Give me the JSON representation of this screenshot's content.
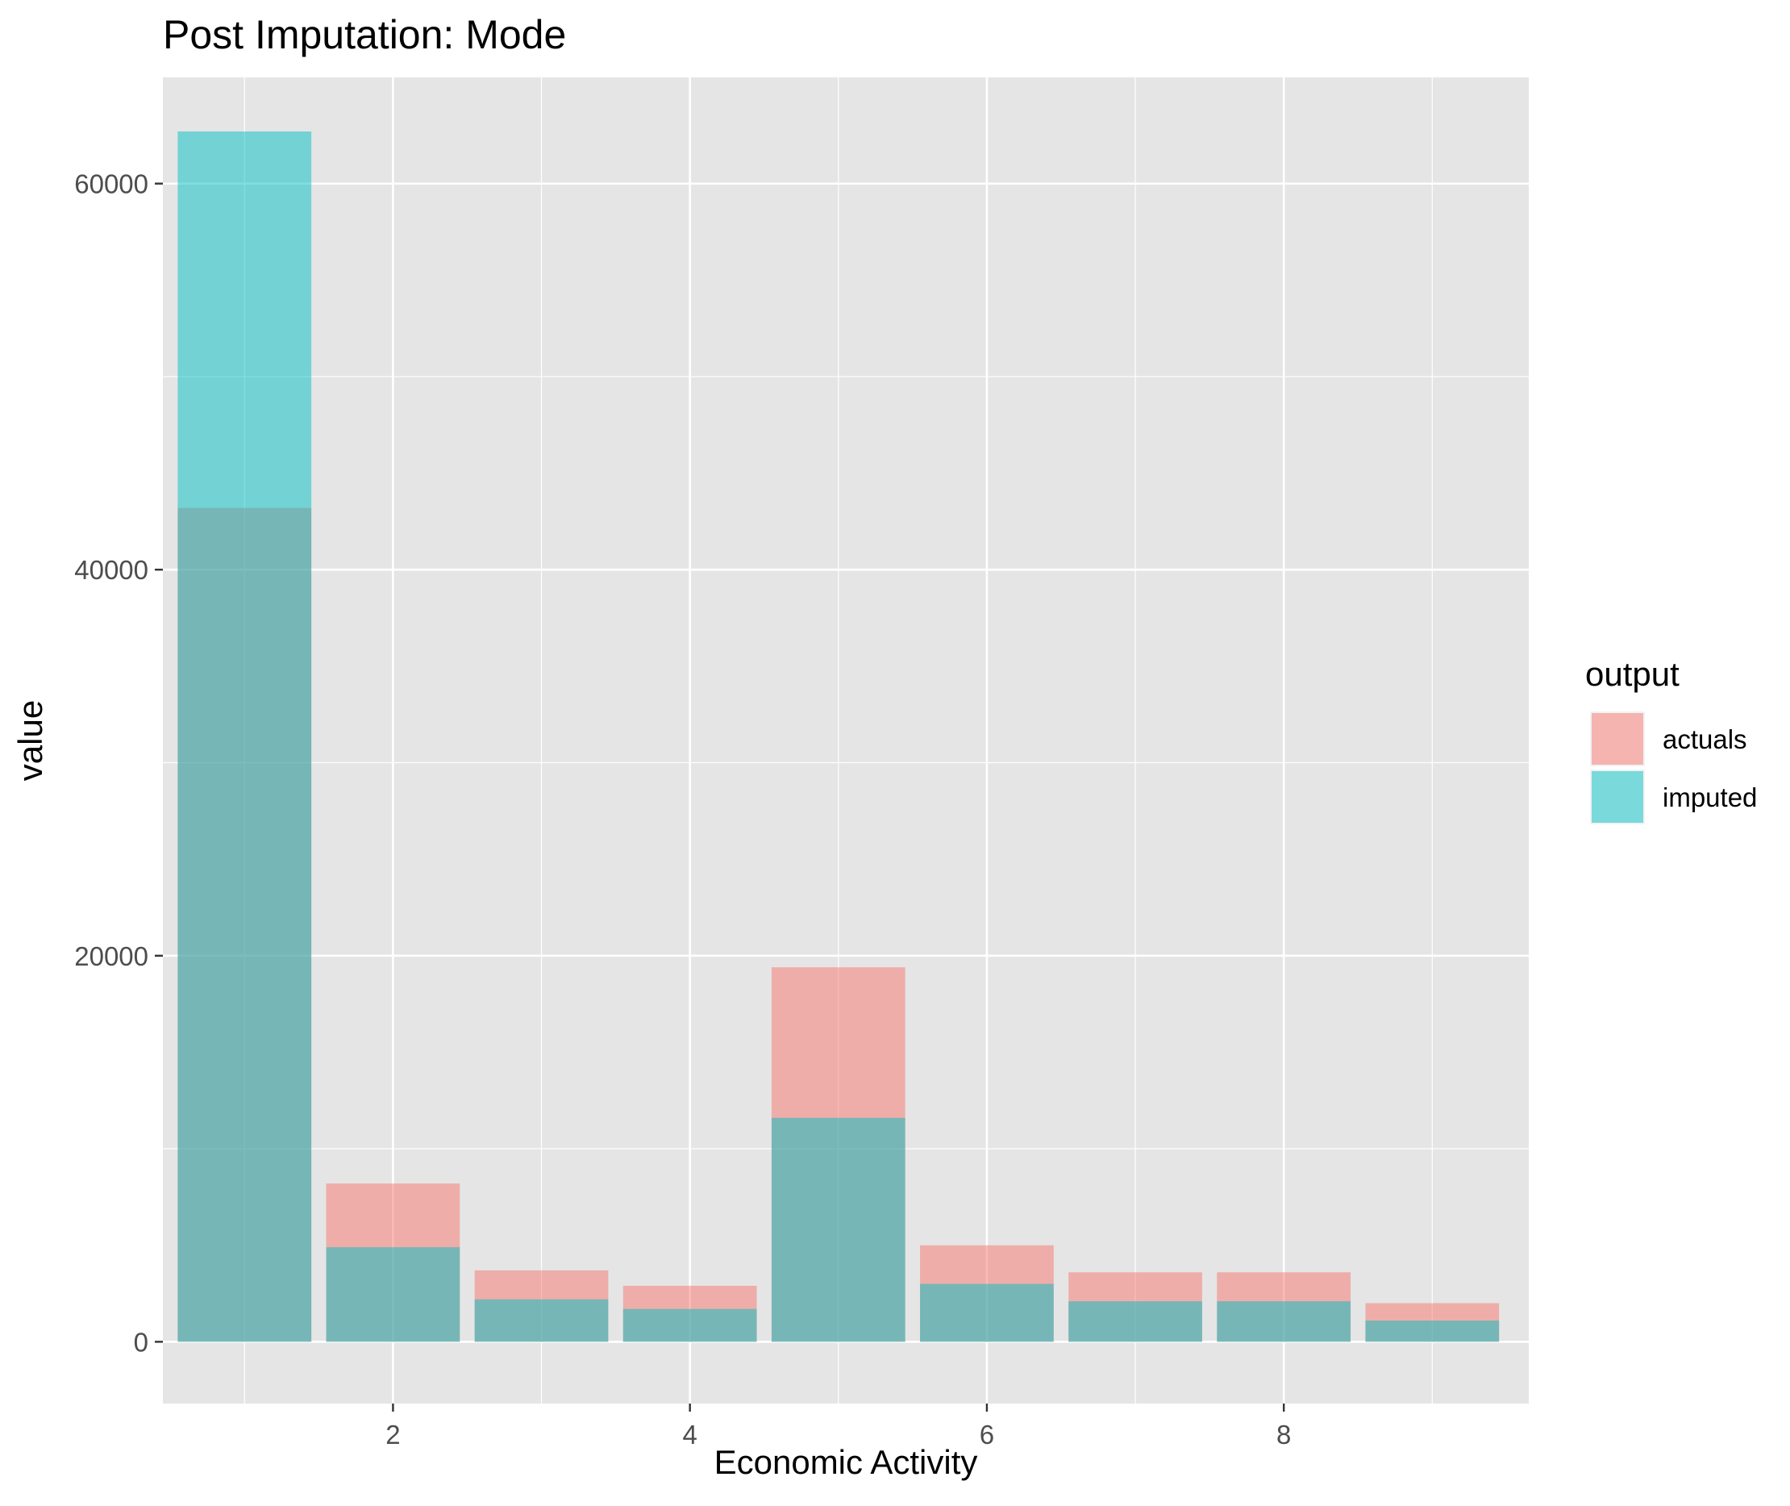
{
  "chart_data": {
    "type": "bar",
    "title": "Post Imputation: Mode",
    "xlabel": "Economic Activity",
    "ylabel": "value",
    "x": [
      1,
      2,
      3,
      4,
      5,
      6,
      7,
      8,
      9
    ],
    "xlim": [
      0.45,
      9.65
    ],
    "ylim": [
      -3200,
      65500
    ],
    "x_ticks": [
      2,
      4,
      6,
      8
    ],
    "x_tick_labels": [
      "2",
      "4",
      "6",
      "8"
    ],
    "y_ticks": [
      0,
      20000,
      40000,
      60000
    ],
    "y_tick_labels": [
      "0",
      "20000",
      "40000",
      "60000"
    ],
    "grid": true,
    "overlay": "identity (semi-transparent, overlapping)",
    "series": [
      {
        "name": "actuals",
        "color": "#F8766D",
        "values": [
          43200,
          8200,
          3700,
          2900,
          19400,
          5000,
          3600,
          3600,
          2000
        ]
      },
      {
        "name": "imputed",
        "color": "#00BFC4",
        "values": [
          62700,
          4900,
          2200,
          1700,
          11600,
          3000,
          2100,
          2100,
          1100
        ]
      }
    ],
    "legend": {
      "title": "output",
      "position": "right",
      "entries": [
        "actuals",
        "imputed"
      ]
    }
  }
}
